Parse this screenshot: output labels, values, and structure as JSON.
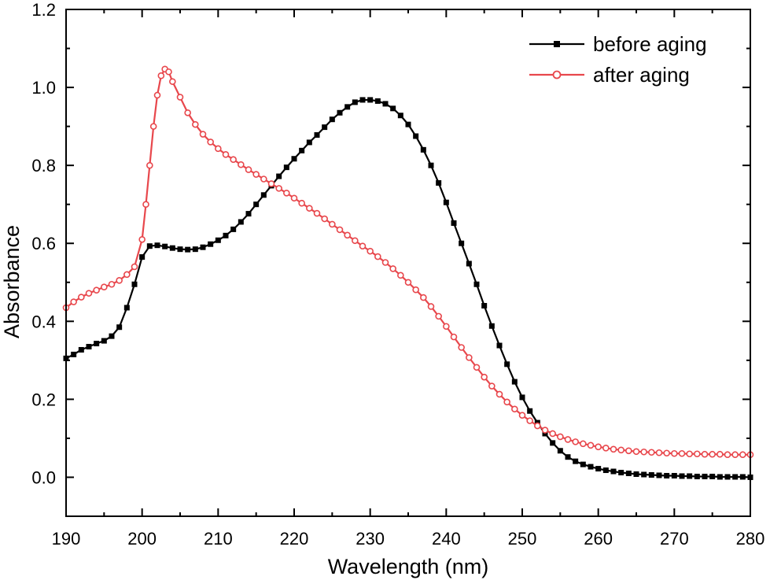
{
  "chart_data": {
    "type": "line",
    "title": "",
    "xlabel": "Wavelength (nm)",
    "ylabel": "Absorbance",
    "xlim": [
      190,
      280
    ],
    "ylim": [
      -0.1,
      1.2
    ],
    "xticks": [
      190,
      200,
      210,
      220,
      230,
      240,
      250,
      260,
      270,
      280
    ],
    "yticks": [
      0.0,
      0.2,
      0.4,
      0.6,
      0.8,
      1.0,
      1.2
    ],
    "ytick_labels": [
      "0.0",
      "0.2",
      "0.4",
      "0.6",
      "0.8",
      "1.0",
      "1.2"
    ],
    "grid": false,
    "legend_position": "top-right",
    "series": [
      {
        "name": "before aging",
        "color": "#000000",
        "marker": "filled-square",
        "x": [
          190,
          191,
          192,
          193,
          194,
          195,
          196,
          197,
          198,
          199,
          200,
          201,
          202,
          203,
          204,
          205,
          206,
          207,
          208,
          209,
          210,
          211,
          212,
          213,
          214,
          215,
          216,
          217,
          218,
          219,
          220,
          221,
          222,
          223,
          224,
          225,
          226,
          227,
          228,
          229,
          230,
          231,
          232,
          233,
          234,
          235,
          236,
          237,
          238,
          239,
          240,
          241,
          242,
          243,
          244,
          245,
          246,
          247,
          248,
          249,
          250,
          251,
          252,
          253,
          254,
          255,
          256,
          257,
          258,
          259,
          260,
          261,
          262,
          263,
          264,
          265,
          266,
          267,
          268,
          269,
          270,
          271,
          272,
          273,
          274,
          275,
          276,
          277,
          278,
          279,
          280
        ],
        "y": [
          0.305,
          0.315,
          0.327,
          0.335,
          0.343,
          0.35,
          0.362,
          0.385,
          0.435,
          0.495,
          0.565,
          0.593,
          0.595,
          0.592,
          0.588,
          0.585,
          0.584,
          0.585,
          0.59,
          0.598,
          0.608,
          0.62,
          0.636,
          0.655,
          0.676,
          0.7,
          0.724,
          0.748,
          0.772,
          0.795,
          0.817,
          0.838,
          0.859,
          0.878,
          0.898,
          0.918,
          0.935,
          0.95,
          0.962,
          0.968,
          0.968,
          0.965,
          0.958,
          0.946,
          0.928,
          0.905,
          0.875,
          0.84,
          0.8,
          0.755,
          0.705,
          0.652,
          0.6,
          0.548,
          0.495,
          0.44,
          0.388,
          0.338,
          0.29,
          0.245,
          0.205,
          0.17,
          0.14,
          0.112,
          0.088,
          0.068,
          0.052,
          0.041,
          0.033,
          0.027,
          0.022,
          0.018,
          0.015,
          0.012,
          0.01,
          0.008,
          0.007,
          0.006,
          0.005,
          0.004,
          0.004,
          0.003,
          0.003,
          0.002,
          0.002,
          0.002,
          0.001,
          0.001,
          0.001,
          0.001,
          0.0
        ]
      },
      {
        "name": "after aging",
        "color": "#e8474c",
        "marker": "open-circle",
        "x": [
          190,
          191,
          192,
          193,
          194,
          195,
          196,
          197,
          198,
          199,
          200,
          200.5,
          201,
          201.5,
          202,
          202.5,
          203,
          203.5,
          204,
          205,
          206,
          207,
          208,
          209,
          210,
          211,
          212,
          213,
          214,
          215,
          216,
          217,
          218,
          219,
          220,
          221,
          222,
          223,
          224,
          225,
          226,
          227,
          228,
          229,
          230,
          231,
          232,
          233,
          234,
          235,
          236,
          237,
          238,
          239,
          240,
          241,
          242,
          243,
          244,
          245,
          246,
          247,
          248,
          249,
          250,
          251,
          252,
          253,
          254,
          255,
          256,
          257,
          258,
          259,
          260,
          261,
          262,
          263,
          264,
          265,
          266,
          267,
          268,
          269,
          270,
          271,
          272,
          273,
          274,
          275,
          276,
          277,
          278,
          279,
          280
        ],
        "y": [
          0.435,
          0.45,
          0.462,
          0.472,
          0.48,
          0.488,
          0.495,
          0.505,
          0.52,
          0.54,
          0.61,
          0.7,
          0.8,
          0.9,
          0.98,
          1.03,
          1.047,
          1.04,
          1.015,
          0.975,
          0.935,
          0.905,
          0.88,
          0.86,
          0.843,
          0.828,
          0.815,
          0.802,
          0.789,
          0.777,
          0.765,
          0.753,
          0.741,
          0.729,
          0.716,
          0.703,
          0.69,
          0.677,
          0.663,
          0.649,
          0.635,
          0.621,
          0.607,
          0.593,
          0.58,
          0.566,
          0.551,
          0.535,
          0.518,
          0.5,
          0.481,
          0.461,
          0.438,
          0.413,
          0.387,
          0.36,
          0.333,
          0.307,
          0.282,
          0.257,
          0.234,
          0.213,
          0.193,
          0.175,
          0.159,
          0.145,
          0.132,
          0.121,
          0.112,
          0.104,
          0.097,
          0.091,
          0.086,
          0.082,
          0.078,
          0.075,
          0.072,
          0.07,
          0.068,
          0.066,
          0.065,
          0.064,
          0.063,
          0.062,
          0.061,
          0.061,
          0.06,
          0.06,
          0.059,
          0.059,
          0.059,
          0.058,
          0.058,
          0.058,
          0.058
        ]
      }
    ]
  }
}
